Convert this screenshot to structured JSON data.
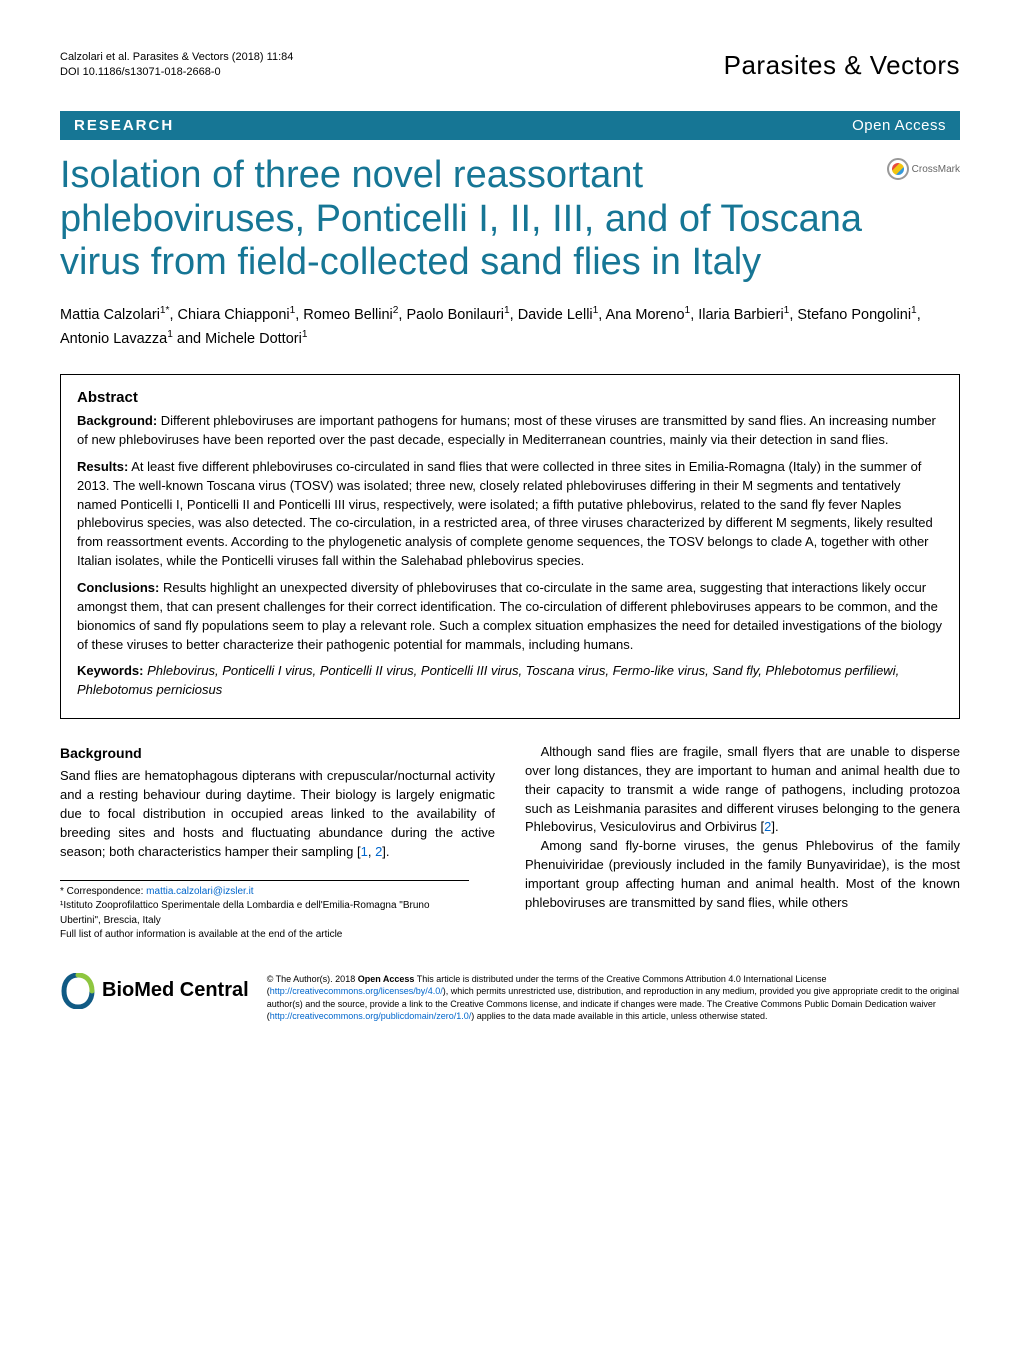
{
  "header": {
    "citation": "Calzolari et al. Parasites & Vectors  (2018) 11:84",
    "doi": "DOI 10.1186/s13071-018-2668-0",
    "journal": "Parasites & Vectors"
  },
  "research_bar": {
    "label": "RESEARCH",
    "open_access": "Open Access"
  },
  "crossmark_label": "CrossMark",
  "title": "Isolation of three novel reassortant phleboviruses, Ponticelli I, II, III, and of Toscana virus from field-collected sand flies in Italy",
  "authors_html": "Mattia Calzolari<sup>1*</sup>, Chiara Chiapponi<sup>1</sup>, Romeo Bellini<sup>2</sup>, Paolo Bonilauri<sup>1</sup>, Davide Lelli<sup>1</sup>, Ana Moreno<sup>1</sup>, Ilaria Barbieri<sup>1</sup>, Stefano Pongolini<sup>1</sup>, Antonio Lavazza<sup>1</sup> and Michele Dottori<sup>1</sup>",
  "abstract": {
    "heading": "Abstract",
    "background_label": "Background:",
    "background": " Different phleboviruses are important pathogens for humans; most of these viruses are transmitted by sand flies. An increasing number of new phleboviruses have been reported over the past decade, especially in Mediterranean countries, mainly via their detection in sand flies.",
    "results_label": "Results:",
    "results": " At least five different phleboviruses co-circulated in sand flies that were collected in three sites in Emilia-Romagna (Italy) in the summer of 2013. The well-known Toscana virus (TOSV) was isolated; three new, closely related phleboviruses differing in their M segments and tentatively named Ponticelli I, Ponticelli II and Ponticelli III virus, respectively, were isolated; a fifth putative phlebovirus, related to the sand fly fever Naples phlebovirus species, was also detected. The co-circulation, in a restricted area, of three viruses characterized by different M segments, likely resulted from reassortment events. According to the phylogenetic analysis of complete genome sequences, the TOSV belongs to clade A, together with other Italian isolates, while the Ponticelli viruses fall within the Salehabad phlebovirus species.",
    "conclusions_label": "Conclusions:",
    "conclusions": " Results highlight an unexpected diversity of phleboviruses that co-circulate in the same area, suggesting that interactions likely occur amongst them, that can present challenges for their correct identification. The co-circulation of different phleboviruses appears to be common, and the bionomics of sand fly populations seem to play a relevant role. Such a complex situation emphasizes the need for detailed investigations of the biology of these viruses to better characterize their pathogenic potential for mammals, including humans.",
    "keywords_label": "Keywords:",
    "keywords": " Phlebovirus, Ponticelli I virus, Ponticelli II virus, Ponticelli III virus, Toscana virus, Fermo-like virus, Sand fly, Phlebotomus perfiliewi, Phlebotomus perniciosus"
  },
  "body": {
    "background_heading": "Background",
    "left_p1": "Sand flies are hematophagous dipterans with crepuscular/nocturnal activity and a resting behaviour during daytime. Their biology is largely enigmatic due to focal distribution in occupied areas linked to the availability of breeding sites and hosts and fluctuating abundance during the active season; both characteristics hamper their sampling [",
    "ref1": "1",
    "ref_sep": ", ",
    "ref2": "2",
    "left_p1_suffix": "].",
    "right_p1": "Although sand flies are fragile, small flyers that are unable to disperse over long distances, they are important to human and animal health due to their capacity to transmit a wide range of pathogens, including protozoa such as Leishmania parasites and different viruses belonging to the genera Phlebovirus, Vesiculovirus and Orbivirus [",
    "right_ref2": "2",
    "right_p1_suffix": "].",
    "right_p2": "Among sand fly-borne viruses, the genus Phlebovirus of the family Phenuiviridae (previously included in the family Bunyaviridae), is the most important group affecting human and animal health. Most of the known phleboviruses are transmitted by sand flies, while others"
  },
  "correspondence": {
    "star": "* Correspondence: ",
    "email": "mattia.calzolari@izsler.it",
    "affil1": "¹Istituto Zooprofilattico Sperimentale della Lombardia e dell'Emilia-Romagna \"Bruno Ubertini\", Brescia, Italy",
    "full_list": "Full list of author information is available at the end of the article"
  },
  "footer": {
    "bmc": "BioMed Central",
    "license_prefix": "© The Author(s). 2018 ",
    "open_access_bold": "Open Access",
    "license_body1": " This article is distributed under the terms of the Creative Commons Attribution 4.0 International License (",
    "license_url1": "http://creativecommons.org/licenses/by/4.0/",
    "license_body2": "), which permits unrestricted use, distribution, and reproduction in any medium, provided you give appropriate credit to the original author(s) and the source, provide a link to the Creative Commons license, and indicate if changes were made. The Creative Commons Public Domain Dedication waiver (",
    "license_url2": "http://creativecommons.org/publicdomain/zero/1.0/",
    "license_body3": ") applies to the data made available in this article, unless otherwise stated."
  },
  "colors": {
    "brand_bar": "#167695",
    "link": "#0066cc"
  }
}
